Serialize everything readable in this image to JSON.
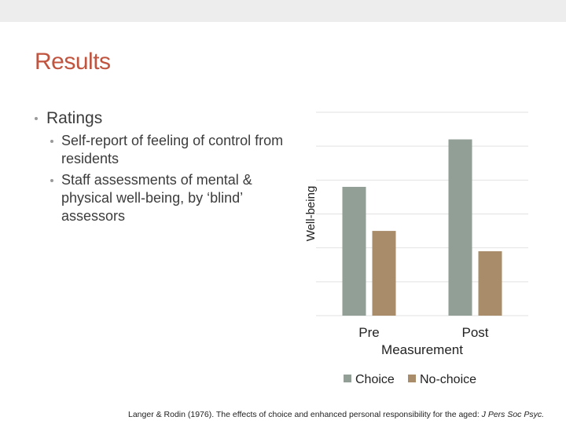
{
  "slide": {
    "title": "Results",
    "bullets": {
      "level1": "Ratings",
      "level2": [
        "Self-report of feeling of control from residents",
        "Staff assessments of mental & physical well-being, by ‘blind’ assessors"
      ]
    },
    "citation_main": "Langer & Rodin (1976). The effects of choice and enhanced personal responsibility for the aged: ",
    "citation_journal": "J Pers Soc Psyc."
  },
  "colors": {
    "title": "#c0543f",
    "choice": "#919f97",
    "no_choice": "#a98d6a",
    "grid": "#e2e2e2"
  },
  "chart_data": {
    "type": "bar",
    "title": "",
    "xlabel": "Measurement",
    "ylabel": "Well-being",
    "categories": [
      "Pre",
      "Post"
    ],
    "series": [
      {
        "name": "Choice",
        "values": [
          3.8,
          5.2
        ]
      },
      {
        "name": "No-choice",
        "values": [
          2.5,
          1.9
        ]
      }
    ],
    "ylim": [
      0,
      6
    ],
    "grid": true,
    "legend": "bottom"
  }
}
